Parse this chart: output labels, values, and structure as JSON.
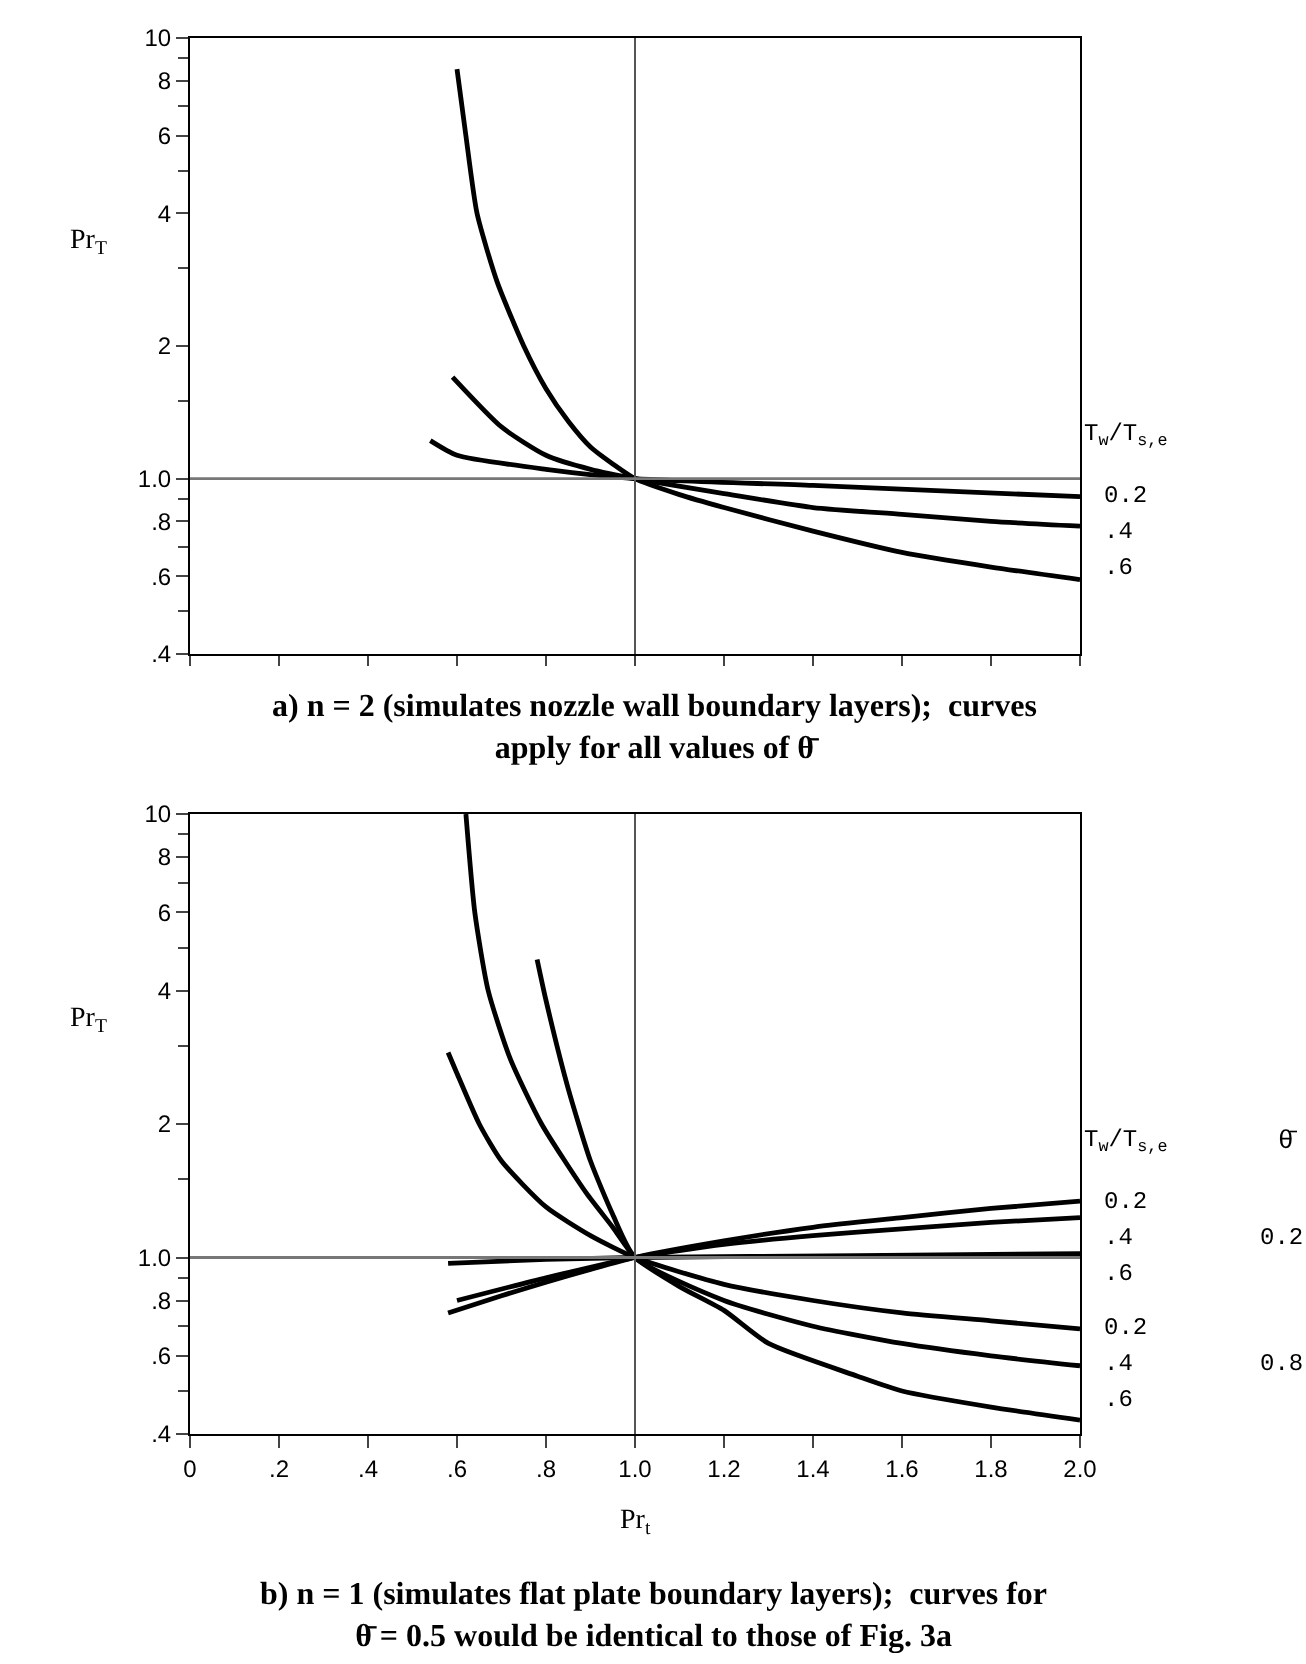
{
  "chart_data": [
    {
      "type": "line",
      "ylabel": "Pr$_{T}$",
      "log": "y",
      "xlim": [
        0,
        2.0
      ],
      "ylim": [
        0.4,
        10
      ],
      "tick_labels": "y",
      "xticks": [
        {
          "value": 0,
          "label": null
        },
        {
          "value": 0.2,
          "label": null
        },
        {
          "value": 0.4,
          "label": null
        },
        {
          "value": 0.6,
          "label": null
        },
        {
          "value": 0.8,
          "label": null
        },
        {
          "value": 1.0,
          "label": null
        },
        {
          "value": 1.2,
          "label": null
        },
        {
          "value": 1.4,
          "label": null
        },
        {
          "value": 1.6,
          "label": null
        },
        {
          "value": 1.8,
          "label": null
        },
        {
          "value": 2.0,
          "label": null
        }
      ],
      "yticks": [
        {
          "value": 0.4,
          "label": ".4"
        },
        {
          "value": 0.5,
          "label": null
        },
        {
          "value": 0.6,
          "label": ".6"
        },
        {
          "value": 0.7,
          "label": null
        },
        {
          "value": 0.8,
          "label": ".8"
        },
        {
          "value": 0.9,
          "label": null
        },
        {
          "value": 1.0,
          "label": "1.0"
        },
        {
          "value": 1.5,
          "label": null
        },
        {
          "value": 2,
          "label": "2"
        },
        {
          "value": 3,
          "label": null
        },
        {
          "value": 4,
          "label": "4"
        },
        {
          "value": 5,
          "label": null
        },
        {
          "value": 6,
          "label": "6"
        },
        {
          "value": 7,
          "label": null
        },
        {
          "value": 8,
          "label": "8"
        },
        {
          "value": 9,
          "label": null
        },
        {
          "value": 10,
          "label": "10"
        }
      ],
      "ref_lines": [
        {
          "axis": "x",
          "value": 1.0
        },
        {
          "axis": "y",
          "value": 1.0
        }
      ],
      "annotations": [
        "a) n = 2 (simulates nozzle wall boundary layers);  curves\napply for all values of θ̄",
        "T$_{w}$/T$_{s,e}$"
      ],
      "series": [
        {
          "name": "0.2",
          "color": "#000000",
          "x": [
            0.54,
            0.6,
            0.8,
            1.0,
            1.4,
            2.0
          ],
          "values": [
            1.22,
            1.13,
            1.05,
            1.0,
            0.965,
            0.91
          ]
        },
        {
          "name": ".4",
          "color": "#000000",
          "x": [
            0.59,
            0.7,
            0.8,
            0.9,
            1.0,
            1.2,
            1.4,
            1.6,
            1.8,
            2.0
          ],
          "values": [
            1.7,
            1.31,
            1.13,
            1.05,
            1.0,
            0.925,
            0.86,
            0.83,
            0.8,
            0.78
          ]
        },
        {
          "name": ".6",
          "color": "#000000",
          "x": [
            0.6,
            0.62,
            0.645,
            0.69,
            0.75,
            0.8,
            0.85,
            0.9,
            0.95,
            1.0,
            1.1,
            1.2,
            1.4,
            1.6,
            1.8,
            2.0
          ],
          "values": [
            8.5,
            6.0,
            4.0,
            2.8,
            2.0,
            1.6,
            1.35,
            1.18,
            1.08,
            1.0,
            0.92,
            0.86,
            0.76,
            0.68,
            0.63,
            0.59
          ]
        }
      ]
    },
    {
      "type": "line",
      "ylabel": "Pr$_{T}$",
      "xlabel": "Pr$_{t}$",
      "log": "y",
      "xlim": [
        0,
        2.0
      ],
      "ylim": [
        0.4,
        10
      ],
      "xticks": [
        {
          "value": 0,
          "label": "0"
        },
        {
          "value": 0.2,
          "label": ".2"
        },
        {
          "value": 0.4,
          "label": ".4"
        },
        {
          "value": 0.6,
          "label": ".6"
        },
        {
          "value": 0.8,
          "label": ".8"
        },
        {
          "value": 1.0,
          "label": "1.0"
        },
        {
          "value": 1.2,
          "label": "1.2"
        },
        {
          "value": 1.4,
          "label": "1.4"
        },
        {
          "value": 1.6,
          "label": "1.6"
        },
        {
          "value": 1.8,
          "label": "1.8"
        },
        {
          "value": 2.0,
          "label": "2.0"
        }
      ],
      "yticks": [
        {
          "value": 0.4,
          "label": ".4"
        },
        {
          "value": 0.5,
          "label": null
        },
        {
          "value": 0.6,
          "label": ".6"
        },
        {
          "value": 0.7,
          "label": null
        },
        {
          "value": 0.8,
          "label": ".8"
        },
        {
          "value": 0.9,
          "label": null
        },
        {
          "value": 1.0,
          "label": "1.0"
        },
        {
          "value": 1.5,
          "label": null
        },
        {
          "value": 2,
          "label": "2"
        },
        {
          "value": 3,
          "label": null
        },
        {
          "value": 4,
          "label": "4"
        },
        {
          "value": 5,
          "label": null
        },
        {
          "value": 6,
          "label": "6"
        },
        {
          "value": 7,
          "label": null
        },
        {
          "value": 8,
          "label": "8"
        },
        {
          "value": 9,
          "label": null
        },
        {
          "value": 10,
          "label": "10"
        }
      ],
      "ref_lines": [
        {
          "axis": "x",
          "value": 1.0
        },
        {
          "axis": "y",
          "value": 1.0
        }
      ],
      "annotations": [
        "b) n = 1 (simulates flat plate boundary layers);  curves for\nθ̄ = 0.5 would be identical to those of Fig. 3a",
        "T$_{w}$/T$_{s,e}$",
        "θ̄",
        "0.2",
        "0.8"
      ],
      "series": [
        {
          "name": "0.2",
          "color": "#000000",
          "x": [
            0.58,
            0.7,
            0.8,
            0.9,
            1.0,
            1.2,
            1.4,
            1.6,
            1.8,
            2.0
          ],
          "values": [
            0.75,
            0.82,
            0.88,
            0.94,
            1.0,
            1.09,
            1.17,
            1.23,
            1.29,
            1.34
          ]
        },
        {
          "name": ".4",
          "color": "#000000",
          "x": [
            0.6,
            0.8,
            1.0,
            1.2,
            1.4,
            1.6,
            1.8,
            2.0
          ],
          "values": [
            0.8,
            0.9,
            1.0,
            1.07,
            1.12,
            1.16,
            1.2,
            1.23
          ]
        },
        {
          "name": ".6",
          "color": "#000000",
          "x": [
            0.58,
            0.8,
            1.0,
            1.5,
            2.0
          ],
          "values": [
            0.97,
            0.99,
            1.0,
            1.01,
            1.02
          ]
        },
        {
          "name": "0.2",
          "color": "#000000",
          "x": [
            0.58,
            0.6,
            0.65,
            0.7,
            0.8,
            0.9,
            1.0,
            1.2,
            1.4,
            1.6,
            1.8,
            2.0
          ],
          "values": [
            2.9,
            2.6,
            2.0,
            1.65,
            1.3,
            1.12,
            1.0,
            0.87,
            0.8,
            0.75,
            0.72,
            0.69
          ]
        },
        {
          "name": ".4",
          "color": "#000000",
          "x": [
            0.78,
            0.8,
            0.85,
            0.9,
            0.95,
            1.0,
            1.2,
            1.4,
            1.6,
            1.8,
            2.0
          ],
          "values": [
            4.7,
            3.8,
            2.4,
            1.65,
            1.25,
            1.0,
            0.8,
            0.7,
            0.64,
            0.6,
            0.57
          ]
        },
        {
          "name": ".6",
          "color": "#000000",
          "x": [
            0.62,
            0.64,
            0.67,
            0.72,
            0.79,
            0.89,
            0.95,
            1.0,
            1.1,
            1.2,
            1.3,
            1.5,
            1.6,
            1.8,
            2.0
          ],
          "values": [
            10,
            6.0,
            4.0,
            2.8,
            2.0,
            1.4,
            1.17,
            1.0,
            0.86,
            0.76,
            0.64,
            0.54,
            0.5,
            0.46,
            0.43
          ]
        }
      ]
    }
  ]
}
